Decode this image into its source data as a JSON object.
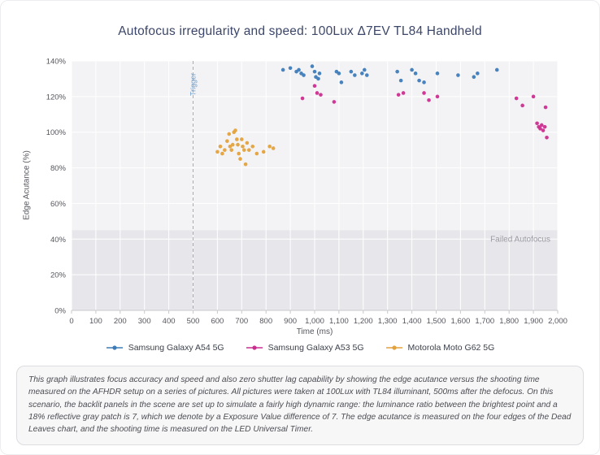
{
  "description": {
    "text": "This graph illustrates focus accuracy and speed and also zero shutter lag capability by showing the edge acutance versus the shooting time measured on the AFHDR setup on a series of pictures. All pictures were taken at 100Lux with TL84 illuminant, 500ms after the defocus. On this scenario, the backlit panels in the scene are set up to simulate a fairly high dynamic range: the luminance ratio between the brightest point and a 18% reflective gray patch is 7, which we denote by a Exposure Value difference of 7. The edge acutance is measured on the four edges of the Dead Leaves chart, and the shooting time is measured on the LED Universal Timer."
  },
  "chart_data": {
    "type": "scatter",
    "title": "Autofocus irregularity and speed: 100Lux Δ7EV TL84 Handheld",
    "xlabel": "Time (ms)",
    "ylabel": "Edge Acutance (%)",
    "xlim": [
      0,
      2000
    ],
    "ylim": [
      0,
      140
    ],
    "grid": true,
    "legend_position": "bottom",
    "colors": {
      "plot_bg": "#f3f3f5",
      "zone_bg": "#e7e7eb",
      "grid": "#ffffff",
      "axis": "#c8c8cd",
      "tick_text": "#55565e",
      "trigger_line": "#8fb2d6",
      "trigger_text": "#6f9ecb",
      "zone_text": "#9a9aa2"
    },
    "x_ticks": [
      {
        "v": 0,
        "label": "0"
      },
      {
        "v": 100,
        "label": "100"
      },
      {
        "v": 200,
        "label": "200"
      },
      {
        "v": 300,
        "label": "300"
      },
      {
        "v": 400,
        "label": "400"
      },
      {
        "v": 500,
        "label": "500"
      },
      {
        "v": 600,
        "label": "600"
      },
      {
        "v": 700,
        "label": "700"
      },
      {
        "v": 800,
        "label": "800"
      },
      {
        "v": 900,
        "label": "900"
      },
      {
        "v": 1000,
        "label": "1,000"
      },
      {
        "v": 1100,
        "label": "1,100"
      },
      {
        "v": 1200,
        "label": "1,200"
      },
      {
        "v": 1300,
        "label": "1,300"
      },
      {
        "v": 1400,
        "label": "1,400"
      },
      {
        "v": 1500,
        "label": "1,500"
      },
      {
        "v": 1600,
        "label": "1,600"
      },
      {
        "v": 1700,
        "label": "1,700"
      },
      {
        "v": 1800,
        "label": "1,800"
      },
      {
        "v": 1900,
        "label": "1,900"
      },
      {
        "v": 2000,
        "label": "2,000"
      }
    ],
    "y_ticks": [
      {
        "v": 0,
        "label": "0%"
      },
      {
        "v": 20,
        "label": "20%"
      },
      {
        "v": 40,
        "label": "40%"
      },
      {
        "v": 60,
        "label": "60%"
      },
      {
        "v": 80,
        "label": "80%"
      },
      {
        "v": 100,
        "label": "100%"
      },
      {
        "v": 120,
        "label": "120%"
      },
      {
        "v": 140,
        "label": "140%"
      }
    ],
    "annotations": {
      "trigger": {
        "label": "Trigger",
        "x": 500
      },
      "failed_zone": {
        "label": "Failed Autofocus",
        "y_max": 45
      }
    },
    "series": [
      {
        "name": "Samsung Galaxy A54 5G",
        "color": "#3e7cb9",
        "points": [
          [
            870,
            135
          ],
          [
            900,
            136
          ],
          [
            925,
            134
          ],
          [
            935,
            135
          ],
          [
            945,
            133
          ],
          [
            955,
            132
          ],
          [
            990,
            137
          ],
          [
            1000,
            134
          ],
          [
            1005,
            131
          ],
          [
            1015,
            130
          ],
          [
            1020,
            133
          ],
          [
            1090,
            134
          ],
          [
            1100,
            133
          ],
          [
            1110,
            128
          ],
          [
            1150,
            134
          ],
          [
            1165,
            132
          ],
          [
            1195,
            133
          ],
          [
            1205,
            135
          ],
          [
            1215,
            132
          ],
          [
            1340,
            134
          ],
          [
            1355,
            129
          ],
          [
            1400,
            135
          ],
          [
            1415,
            133
          ],
          [
            1430,
            129
          ],
          [
            1450,
            128
          ],
          [
            1505,
            133
          ],
          [
            1590,
            132
          ],
          [
            1655,
            131
          ],
          [
            1670,
            133
          ],
          [
            1750,
            135
          ]
        ]
      },
      {
        "name": "Samsung Galaxy A53 5G",
        "color": "#cc2e8f",
        "points": [
          [
            950,
            119
          ],
          [
            1000,
            126
          ],
          [
            1010,
            122
          ],
          [
            1025,
            121
          ],
          [
            1080,
            117
          ],
          [
            1345,
            121
          ],
          [
            1365,
            122
          ],
          [
            1450,
            122
          ],
          [
            1470,
            118
          ],
          [
            1505,
            120
          ],
          [
            1830,
            119
          ],
          [
            1855,
            115
          ],
          [
            1900,
            120
          ],
          [
            1915,
            105
          ],
          [
            1922,
            103
          ],
          [
            1928,
            102
          ],
          [
            1934,
            104
          ],
          [
            1940,
            101
          ],
          [
            1947,
            103
          ],
          [
            1950,
            114
          ],
          [
            1955,
            97
          ]
        ]
      },
      {
        "name": "Motorola Moto G62 5G",
        "color": "#e3a23d",
        "points": [
          [
            600,
            89
          ],
          [
            612,
            92
          ],
          [
            620,
            88
          ],
          [
            630,
            90
          ],
          [
            640,
            95
          ],
          [
            648,
            99
          ],
          [
            652,
            92
          ],
          [
            658,
            90
          ],
          [
            663,
            93
          ],
          [
            668,
            100
          ],
          [
            674,
            101
          ],
          [
            680,
            96
          ],
          [
            684,
            93
          ],
          [
            688,
            88
          ],
          [
            694,
            85
          ],
          [
            700,
            96
          ],
          [
            704,
            92
          ],
          [
            710,
            90
          ],
          [
            716,
            82
          ],
          [
            722,
            94
          ],
          [
            730,
            90
          ],
          [
            745,
            92
          ],
          [
            762,
            88
          ],
          [
            790,
            89
          ],
          [
            815,
            92
          ],
          [
            830,
            91
          ]
        ]
      }
    ]
  }
}
